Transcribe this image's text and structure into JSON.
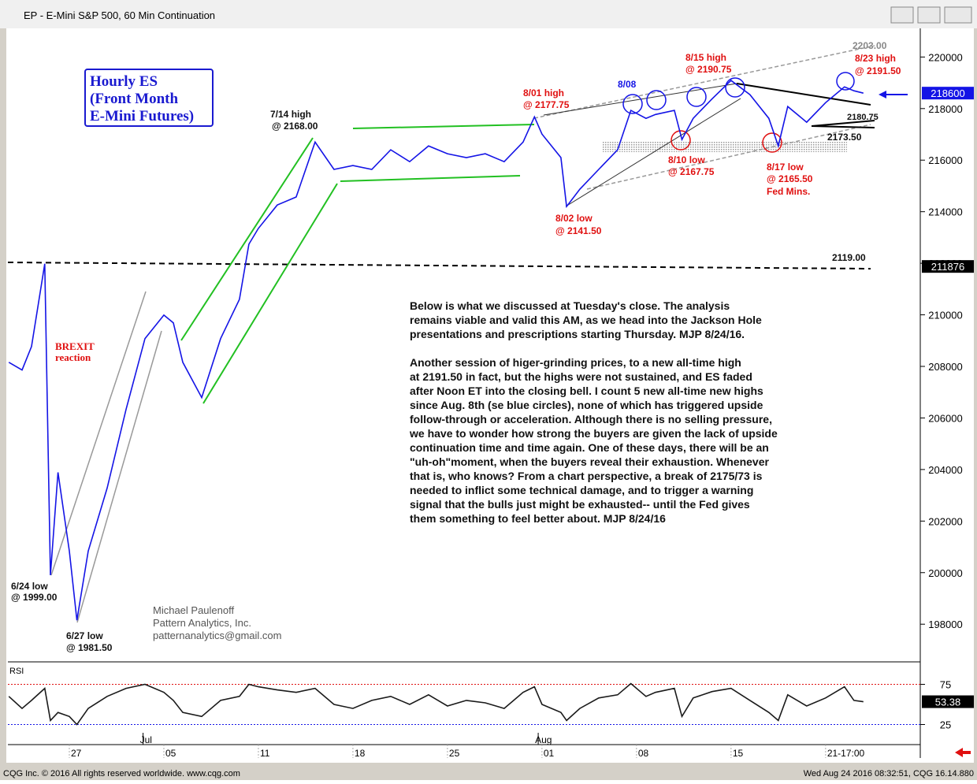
{
  "window_title": "EP - E-Mini S&P 500, 60 Min Continuation",
  "status_left": "CQG Inc. © 2016 All rights reserved worldwide. www.cqg.com",
  "status_right": "Wed Aug 24 2016 08:32:51, CQG 16.14.880",
  "chart_data": [
    {
      "type": "line",
      "color": "#1414e6",
      "x": [
        -3.2,
        -2.5,
        -2,
        -1.3,
        -1,
        -0.6,
        0,
        0.4,
        1,
        2,
        3,
        4,
        5,
        5.5,
        6,
        7,
        8,
        9,
        9.5,
        10,
        11,
        12,
        13,
        14,
        15,
        16,
        17,
        18,
        19,
        20,
        21,
        22,
        23,
        24,
        24.6,
        25,
        26,
        26.3,
        27,
        28,
        29,
        29.7,
        30.5,
        31,
        32,
        32.4,
        33,
        34,
        35,
        36,
        37,
        37.5,
        38,
        39,
        40,
        41,
        41.5,
        42
      ],
      "values": [
        208160,
        207860,
        208770,
        211980,
        199900,
        203890,
        200840,
        198150,
        200840,
        203280,
        206330,
        209080,
        209990,
        209690,
        208160,
        206790,
        209080,
        210600,
        212740,
        213350,
        214260,
        214570,
        216700,
        215640,
        215790,
        215640,
        216400,
        215940,
        216550,
        216250,
        216100,
        216250,
        215940,
        216700,
        217680,
        217010,
        216100,
        214200,
        214870,
        215640,
        216400,
        217930,
        217620,
        217770,
        217930,
        216800,
        217620,
        218380,
        219090,
        218540,
        217620,
        216550,
        218080,
        217470,
        218230,
        218840,
        218690,
        218600
      ],
      "xlim": [
        -3.25,
        44.8
      ],
      "ylim": [
        196600,
        221050
      ],
      "xticks": [
        {
          "value": 0,
          "label": "27"
        },
        {
          "value": 5,
          "label": "05"
        },
        {
          "value": 10,
          "label": "11"
        },
        {
          "value": 15,
          "label": "18"
        },
        {
          "value": 20,
          "label": "25"
        },
        {
          "value": 25,
          "label": "01"
        },
        {
          "value": 30,
          "label": "08"
        },
        {
          "value": 35,
          "label": "15"
        },
        {
          "value": 40,
          "label": "21-17:00"
        }
      ],
      "month_ticks": [
        {
          "value": 3.9,
          "label": "Jul"
        },
        {
          "value": 24.8,
          "label": "Aug"
        }
      ],
      "yticks": [
        198000,
        200000,
        202000,
        204000,
        206000,
        208000,
        210000,
        212000,
        214000,
        216000,
        218000,
        220000
      ],
      "markers": [
        218600,
        211876
      ],
      "box_title": [
        "Hourly ES",
        "(Front Month",
        "E-Mini Futures)"
      ],
      "annotations": [
        "7/14 high",
        "@ 2168.00",
        "8/01 high",
        "@ 2177.75",
        "8/08",
        "8/15 high",
        "@ 2190.75",
        "8/23 high",
        "@ 2191.50",
        "2203.00",
        "2180.75",
        "2173.50",
        "8/10 low",
        "@ 2167.75",
        "8/17 low",
        "@ 2165.50",
        "Fed Mins.",
        "8/02 low",
        "@ 2141.50",
        "2119.00",
        "BREXIT",
        "reaction",
        "6/24 low",
        "@ 1999.00",
        "6/27 low",
        "@ 1981.50"
      ],
      "author": [
        "Michael Paulenoff",
        "Pattern Analytics, Inc.",
        "patternanalytics@gmail.com"
      ],
      "commentary": [
        "   Below is what we discussed at Tuesday's close. The analysis",
        "remains viable and valid this AM, as we head into the Jackson Hole",
        "presentations and prescriptions starting Thursday. MJP 8/24/16.",
        "",
        "   Another session of higer-grinding prices, to a new all-time high",
        "at 2191.50 in fact, but the highs were not sustained, and ES faded",
        "after Noon ET into the closing bell. I count 5 new all-time new highs",
        "since Aug. 8th (se blue circles), none of which has triggered upside",
        "follow-through or acceleration. Although there is no selling pressure,",
        "we have to wonder how strong the buyers are given the lack of upside",
        "continuation time and time again. One of these days, there will be an",
        "\"uh-oh\"moment, when the buyers reveal their exhaustion. Whenever",
        "that is, who knows? From a chart perspective, a break of 2175/73 is",
        "needed to inflict some technical damage, and to trigger a warning",
        "signal that the bulls just might be exhausted-- until the Fed gives",
        "them something to feel better about.  MJP 8/24/16"
      ]
    },
    {
      "type": "line",
      "title": "RSI",
      "color": "#1a1a1a",
      "x": [
        -3.2,
        -2.5,
        -2,
        -1.3,
        -1,
        -0.6,
        0,
        0.4,
        1,
        2,
        3,
        4,
        5,
        5.5,
        6,
        7,
        8,
        9,
        9.5,
        10,
        11,
        12,
        13,
        14,
        15,
        16,
        17,
        18,
        19,
        20,
        21,
        22,
        23,
        24,
        24.6,
        25,
        26,
        26.3,
        27,
        28,
        29,
        29.7,
        30.5,
        31,
        32,
        32.4,
        33,
        34,
        35,
        36,
        37,
        37.5,
        38,
        39,
        40,
        41,
        41.5,
        42
      ],
      "values": [
        60,
        45,
        55,
        70,
        30,
        40,
        35,
        25,
        45,
        60,
        70,
        75,
        65,
        55,
        40,
        35,
        55,
        60,
        75,
        72,
        68,
        65,
        70,
        50,
        45,
        55,
        60,
        50,
        62,
        48,
        55,
        52,
        45,
        65,
        72,
        50,
        40,
        30,
        45,
        58,
        62,
        76,
        60,
        65,
        70,
        35,
        58,
        66,
        70,
        55,
        40,
        30,
        62,
        48,
        58,
        72,
        55,
        53.38
      ],
      "xlim": [
        -3.25,
        44.8
      ],
      "ylim": [
        0,
        100
      ],
      "yticks": [
        25,
        75
      ],
      "markers": [
        53.38
      ]
    }
  ]
}
